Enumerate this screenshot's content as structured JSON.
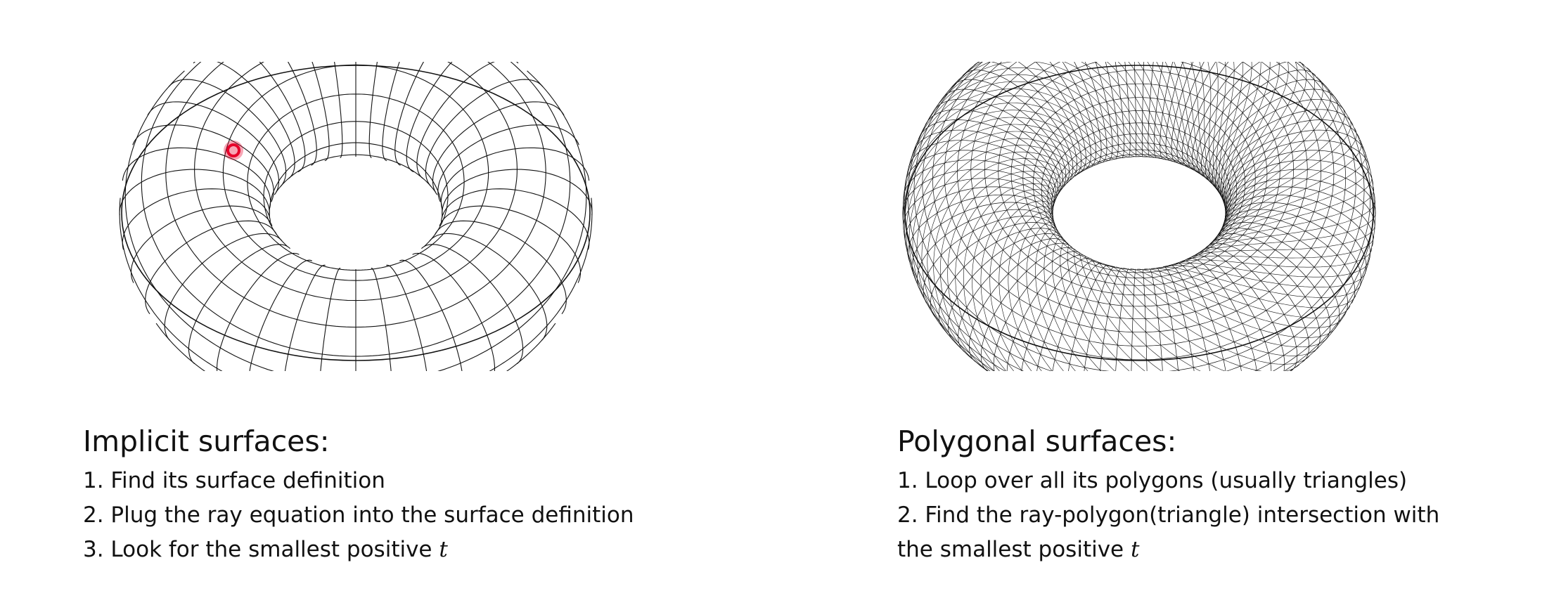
{
  "left": {
    "title": "Implicit surfaces:",
    "steps": [
      "1. Find its surface definition",
      "2. Plug the ray equation into the surface definition",
      "3. Look for the smallest positive "
    ],
    "variable": "t",
    "figure_icon": "torus-parametric-grid",
    "cursor_color": "#e8002a"
  },
  "right": {
    "title": "Polygonal surfaces:",
    "steps": [
      "1. Loop over all its polygons (usually triangles)",
      "2. Find the ray-polygon(triangle) intersection with",
      "the smallest positive "
    ],
    "variable": "t",
    "figure_icon": "torus-triangle-mesh"
  }
}
